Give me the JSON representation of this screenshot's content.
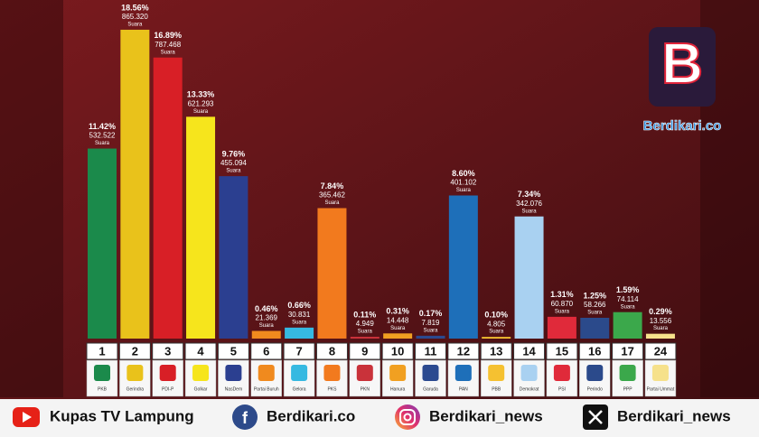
{
  "chart_data": {
    "type": "bar",
    "categories": [
      "PKB",
      "Gerindra",
      "PDI-P",
      "Golkar",
      "NasDem",
      "Partai Buruh",
      "Gelora",
      "PKS",
      "PKN",
      "Hanura",
      "Garuda",
      "PAN",
      "PBB",
      "Demokrat",
      "PSI",
      "Perindo",
      "PPP",
      "Partai Ummat"
    ],
    "party_numbers": [
      "1",
      "2",
      "3",
      "4",
      "5",
      "6",
      "7",
      "8",
      "9",
      "10",
      "11",
      "12",
      "13",
      "14",
      "15",
      "16",
      "17",
      "24"
    ],
    "values": [
      11.42,
      18.56,
      16.89,
      13.33,
      9.76,
      0.46,
      0.66,
      7.84,
      0.11,
      0.31,
      0.17,
      8.6,
      0.1,
      7.34,
      1.31,
      1.25,
      1.59,
      0.29
    ],
    "value_labels": [
      "11.42%",
      "18.56%",
      "16.89%",
      "13.33%",
      "9.76%",
      "0.46%",
      "0.66%",
      "7.84%",
      "0.11%",
      "0.31%",
      "0.17%",
      "8.60%",
      "0.10%",
      "7.34%",
      "1.31%",
      "1.25%",
      "1.59%",
      "0.29%"
    ],
    "votes": {
      "values": [
        532522,
        865320,
        787468,
        621293,
        455094,
        21369,
        30831,
        365462,
        4949,
        14448,
        7819,
        401102,
        4805,
        342076,
        60870,
        58266,
        74114,
        13556
      ],
      "value_labels": [
        "532.522",
        "865.320",
        "787.468",
        "621.293",
        "455.094",
        "21.369",
        "30.831",
        "365.462",
        "4.949",
        "14.448",
        "7.819",
        "401.102",
        "4.805",
        "342.076",
        "60.870",
        "58.266",
        "74.114",
        "13.556"
      ],
      "unit": "Suara"
    },
    "colors": [
      "#1b8a4b",
      "#e9c21b",
      "#d81f26",
      "#f6e51c",
      "#2b3f90",
      "#f08a1e",
      "#36b9e1",
      "#f27a1e",
      "#c9323a",
      "#f1a021",
      "#2b4a90",
      "#1e6fb9",
      "#f5c131",
      "#a9d1f1",
      "#e02a3a",
      "#2b4a8b",
      "#3ba84b",
      "#f6e18b"
    ]
  },
  "watermark": {
    "logo": "B",
    "site": "Berdikari.co"
  },
  "footer": {
    "youtube": "Kupas TV Lampung",
    "facebook": "Berdikari.co",
    "instagram": "Berdikari_news",
    "x": "Berdikari_news"
  }
}
